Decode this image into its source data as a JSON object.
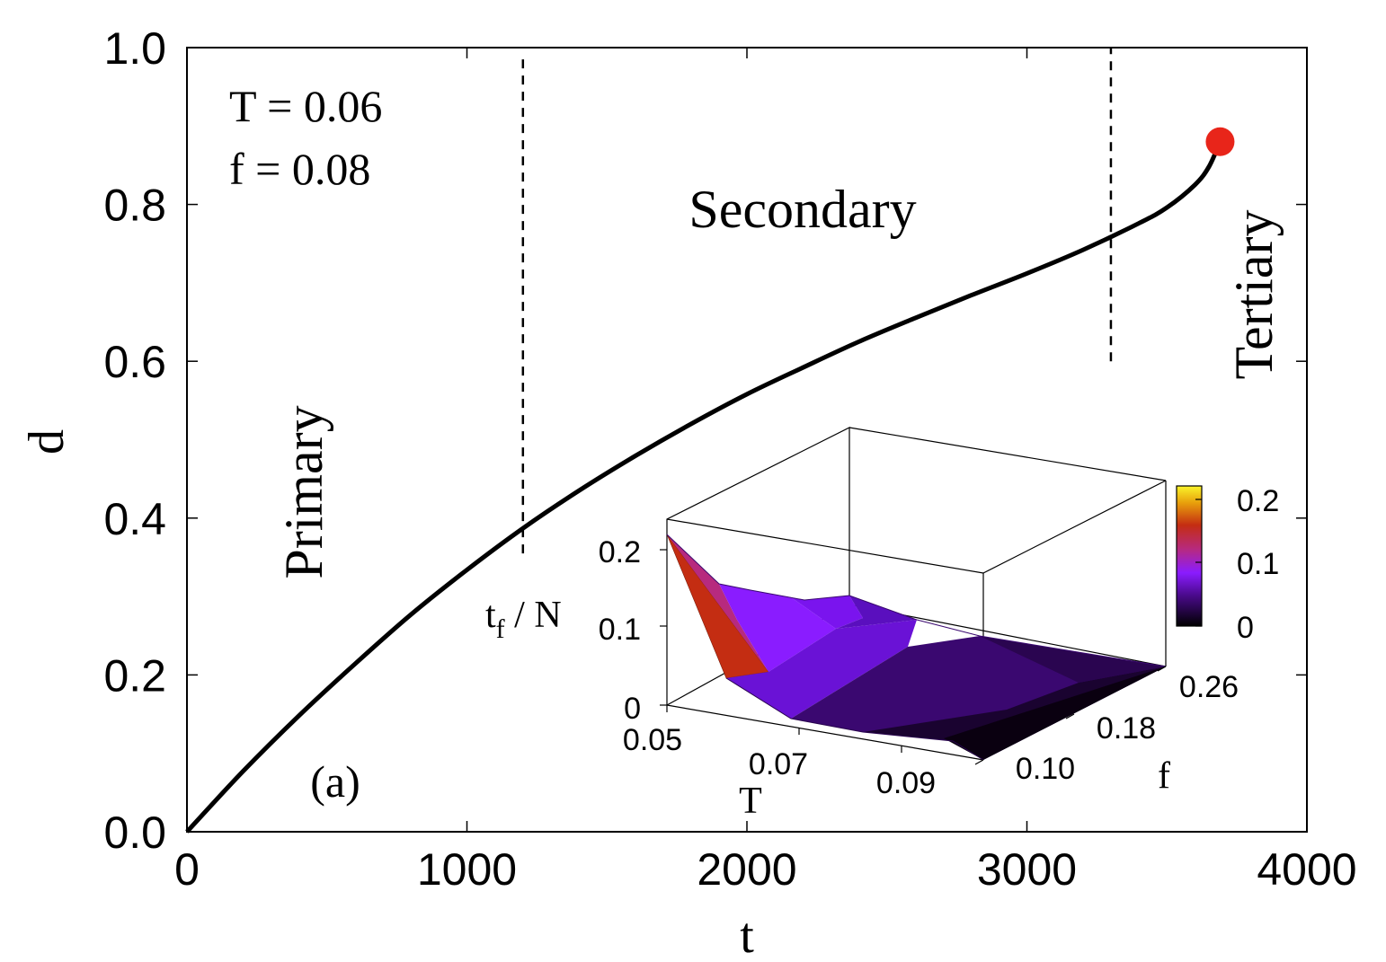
{
  "chart_data": [
    {
      "type": "line",
      "xlabel": "t",
      "ylabel": "d",
      "xlim": [
        0,
        4000
      ],
      "ylim": [
        0.0,
        1.0
      ],
      "xticks": [
        "0",
        "1000",
        "2000",
        "3000",
        "4000"
      ],
      "yticks": [
        "0.0",
        "0.2",
        "0.4",
        "0.6",
        "0.8",
        "1.0"
      ],
      "grid": false,
      "series": [
        {
          "x": [
            0,
            200,
            400,
            600,
            800,
            1000,
            1200,
            1400,
            1600,
            1800,
            2000,
            2200,
            2400,
            2600,
            2800,
            3000,
            3200,
            3400,
            3500,
            3600,
            3650,
            3690
          ],
          "y": [
            0.0,
            0.077,
            0.148,
            0.214,
            0.277,
            0.334,
            0.387,
            0.435,
            0.479,
            0.52,
            0.558,
            0.592,
            0.625,
            0.655,
            0.684,
            0.712,
            0.742,
            0.776,
            0.796,
            0.825,
            0.848,
            0.88
          ],
          "color": "#000000"
        }
      ],
      "endpoint": {
        "x": 3690,
        "y": 0.88,
        "color": "#e8251a"
      },
      "vlines": [
        {
          "x": 1200,
          "y_from": 0.355,
          "y_to": 0.985,
          "style": "dashed"
        },
        {
          "x": 3300,
          "y_from": 0.6,
          "y_to": 1.0,
          "style": "dashed"
        }
      ],
      "annotations": {
        "params_T": "T = 0.06",
        "params_f": "f = 0.08",
        "primary": "Primary",
        "secondary": "Secondary",
        "tertiary": "Tertiary",
        "panel": "(a)"
      }
    },
    {
      "type": "surface",
      "zlabel": "t",
      "zlabel_sub": "f",
      "zlabel_suffix": " / N",
      "xlabel": "T",
      "ylabel": "f",
      "xticks": [
        "0.05",
        "0.07",
        "0.09"
      ],
      "yticks": [
        "0.10",
        "0.18",
        "0.26"
      ],
      "zticks": [
        "0",
        "0.1",
        "0.2"
      ],
      "colorbar_ticks": [
        "0",
        "0.1",
        "0.2"
      ],
      "colors": [
        "#000000",
        "#4a0a8c",
        "#8a1cff",
        "#b72a7e",
        "#c42d12",
        "#e8a00c",
        "#fbf52a"
      ]
    }
  ]
}
